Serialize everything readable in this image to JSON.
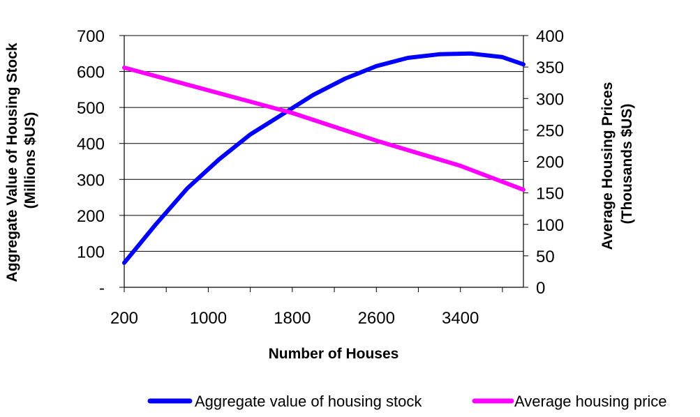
{
  "chart_data": {
    "type": "line",
    "x": [
      200,
      1000,
      1800,
      2600,
      3400,
      4000
    ],
    "x_ticks": [
      "200",
      "1000",
      "1800",
      "2600",
      "3400"
    ],
    "xlabel": "Number of Houses",
    "y_left": {
      "label_line1": "Aggregate Value of Housing Stock",
      "label_line2": "(Millions $US)",
      "range": [
        0,
        700
      ],
      "ticks": [
        "-",
        "100",
        "200",
        "300",
        "400",
        "500",
        "600",
        "700"
      ]
    },
    "y_right": {
      "label_line1": "Average Housing Prices",
      "label_line2": "(Thousands $US)",
      "range": [
        0,
        400
      ],
      "ticks": [
        "0",
        "50",
        "100",
        "150",
        "200",
        "250",
        "300",
        "350",
        "400"
      ]
    },
    "grid": true,
    "legend_position": "bottom",
    "series": [
      {
        "name": "Aggregate value of housing stock",
        "axis": "left",
        "color": "#0000FF",
        "x": [
          200,
          500,
          800,
          1100,
          1400,
          1700,
          2000,
          2300,
          2600,
          2900,
          3200,
          3500,
          3800,
          4000
        ],
        "values": [
          68,
          175,
          275,
          355,
          425,
          480,
          535,
          580,
          615,
          638,
          648,
          650,
          640,
          620
        ]
      },
      {
        "name": "Average housing price",
        "axis": "right",
        "color": "#FF00FF",
        "x": [
          200,
          1800,
          2600,
          3400,
          4000
        ],
        "values": [
          349,
          277,
          233,
          193,
          155
        ]
      }
    ]
  }
}
